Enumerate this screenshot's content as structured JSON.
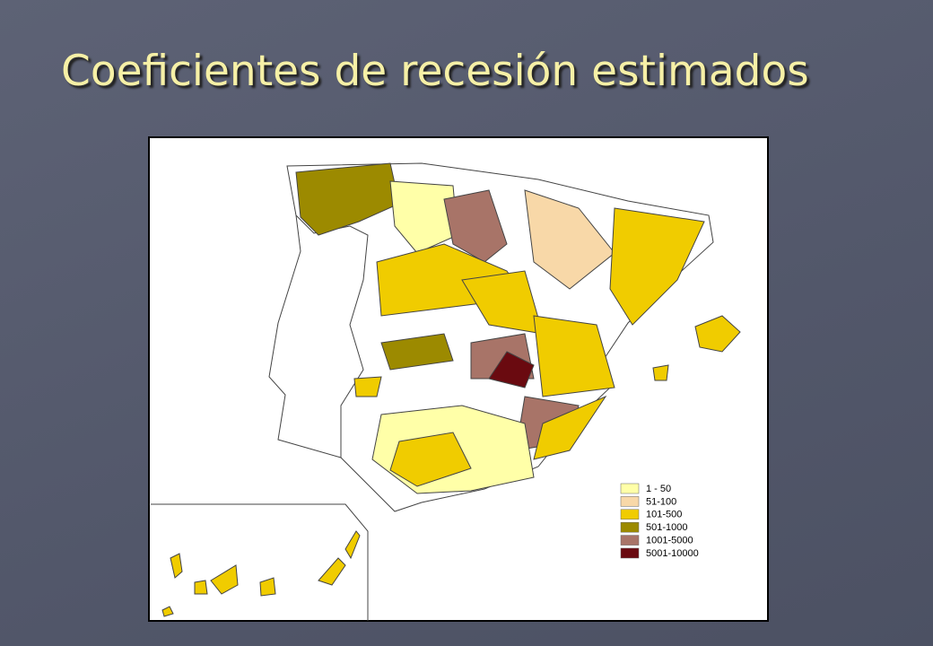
{
  "title": "Coeficientes de recesión estimados",
  "legend": [
    {
      "label": "1 - 50",
      "color": "#ffffa8"
    },
    {
      "label": "51-100",
      "color": "#f8d8a8"
    },
    {
      "label": "101-500",
      "color": "#f0cc00"
    },
    {
      "label": "501-1000",
      "color": "#9c8a00"
    },
    {
      "label": "1001-5000",
      "color": "#a87468"
    },
    {
      "label": "5001-10000",
      "color": "#6a0a10"
    }
  ]
}
